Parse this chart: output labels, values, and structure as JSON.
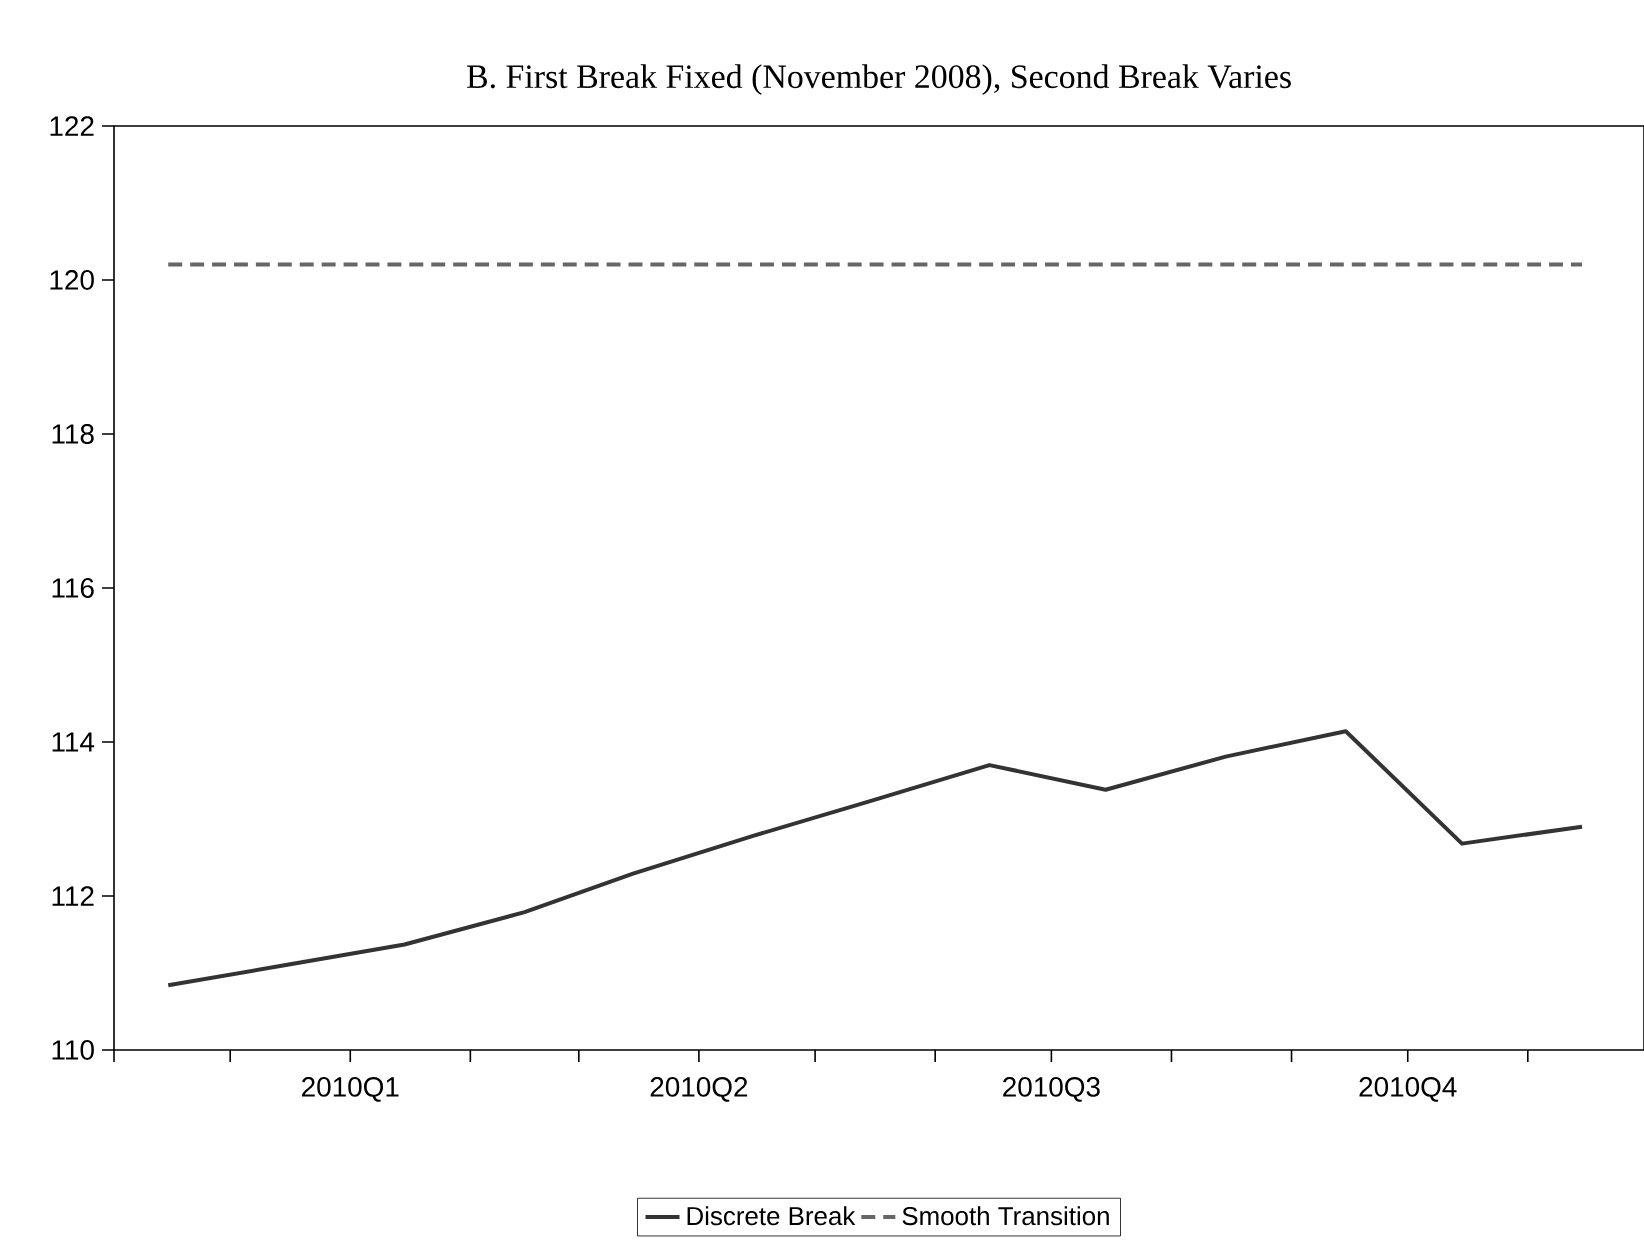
{
  "chart_data": {
    "type": "line",
    "title": "B. First Break Fixed (November 2008), Second Break Varies",
    "x": [
      "2009-11-15",
      "2009-12-15",
      "2010-01-15",
      "2010-02-15",
      "2010-03-15",
      "2010-04-15",
      "2010-05-15",
      "2010-06-15",
      "2010-07-15",
      "2010-08-15",
      "2010-09-15",
      "2010-10-15",
      "2010-11-15"
    ],
    "series": [
      {
        "name": "Discrete Break",
        "color": "#333333",
        "line_style": "solid",
        "values": [
          110.84,
          111.1,
          111.37,
          111.79,
          112.29,
          112.78,
          113.23,
          113.7,
          113.38,
          113.81,
          114.14,
          112.68,
          112.9
        ]
      },
      {
        "name": "Smooth Transition",
        "color": "#666666",
        "line_style": "dashed",
        "values": [
          120.2,
          120.2,
          120.2,
          120.2,
          120.2,
          120.2,
          120.2,
          120.2,
          120.2,
          120.2,
          120.2,
          120.2,
          120.2
        ]
      }
    ],
    "xlim": [
      "2009-11-01",
      "2010-12-01"
    ],
    "xticks": [
      {
        "value": "2009-11-01",
        "label": null
      },
      {
        "value": "2009-12-01",
        "label": null
      },
      {
        "value": "2010-01-01",
        "label": "2010Q1"
      },
      {
        "value": "2010-02-01",
        "label": null
      },
      {
        "value": "2010-03-01",
        "label": null
      },
      {
        "value": "2010-04-01",
        "label": "2010Q2"
      },
      {
        "value": "2010-05-01",
        "label": null
      },
      {
        "value": "2010-06-01",
        "label": null
      },
      {
        "value": "2010-07-01",
        "label": "2010Q3"
      },
      {
        "value": "2010-08-01",
        "label": null
      },
      {
        "value": "2010-09-01",
        "label": null
      },
      {
        "value": "2010-10-01",
        "label": "2010Q4"
      },
      {
        "value": "2010-11-01",
        "label": null
      }
    ],
    "ylim": [
      110,
      122
    ],
    "yticks": [
      110,
      112,
      114,
      116,
      118,
      120,
      122
    ],
    "grid": false,
    "legend": "bottom",
    "marker": "none"
  }
}
